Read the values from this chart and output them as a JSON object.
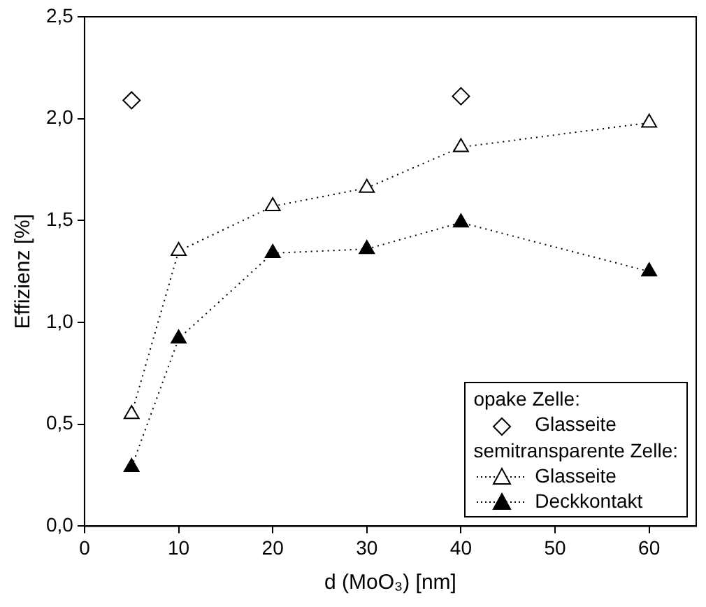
{
  "chart_data": {
    "type": "scatter",
    "xlabel": "d (MoO₃) [nm]",
    "ylabel": "Effizienz [%]",
    "xlim": [
      0,
      65
    ],
    "xticks": [
      0,
      10,
      20,
      30,
      40,
      50,
      60
    ],
    "ylim": [
      0,
      2.5
    ],
    "yticks": [
      {
        "value": 0,
        "label": "0,0"
      },
      {
        "value": 0.5,
        "label": "0,5"
      },
      {
        "value": 1,
        "label": "1,0"
      },
      {
        "value": 1.5,
        "label": "1,5"
      },
      {
        "value": 2,
        "label": "2,0"
      },
      {
        "value": 2.5,
        "label": "2,5"
      }
    ],
    "grid": false,
    "legend": "bottom right",
    "annotations": [
      "opake Zelle:",
      "semitransparente Zelle:"
    ],
    "series": [
      {
        "name": "Glasseite",
        "color": "#000000",
        "marker": "diamond",
        "line_style": "none",
        "x": [
          5,
          40
        ],
        "values": [
          2.09,
          2.11
        ]
      },
      {
        "name": "Glasseite",
        "type": "line",
        "color": "#000000",
        "marker": "triangle",
        "line_style": "dotted",
        "x": [
          5,
          10,
          20,
          30,
          40,
          60
        ],
        "values": [
          0.55,
          1.35,
          1.57,
          1.66,
          1.86,
          1.98
        ]
      },
      {
        "name": "Deckkontakt",
        "type": "line",
        "color": "#000000",
        "marker": "triangle",
        "line_style": "dotted",
        "x": [
          5,
          10,
          20,
          30,
          40,
          60
        ],
        "values": [
          0.29,
          0.92,
          1.34,
          1.36,
          1.49,
          1.25
        ]
      }
    ]
  }
}
